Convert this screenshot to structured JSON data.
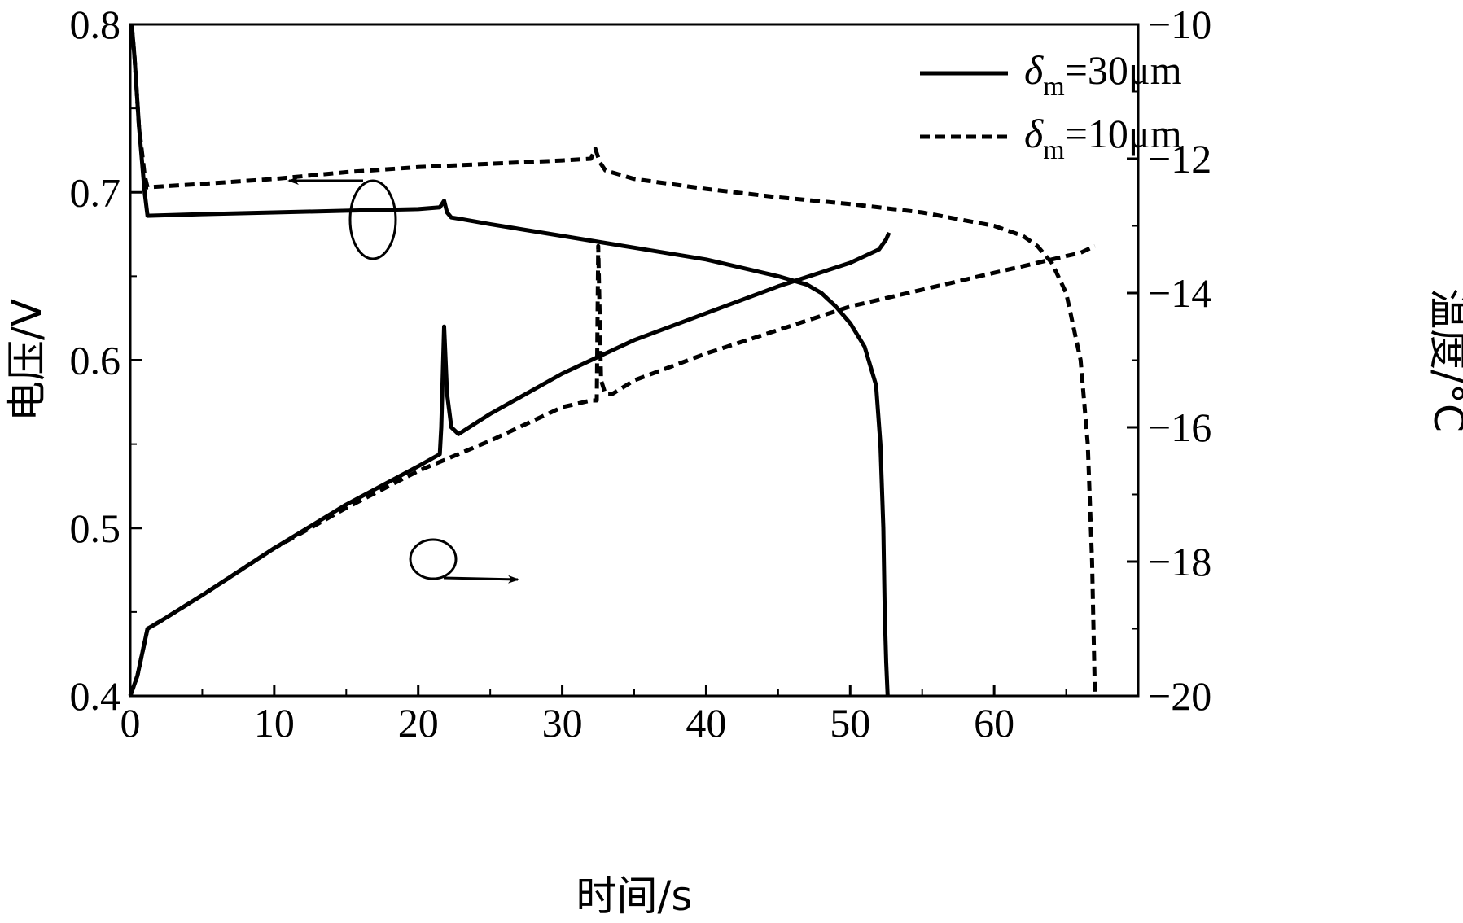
{
  "chart_data": {
    "type": "line",
    "title": "",
    "xlabel": "时间/s",
    "ylabel_left": "电压/V",
    "ylabel_right": "温度/°C",
    "xlim": [
      0,
      70
    ],
    "ylim_left": [
      0.4,
      0.8
    ],
    "ylim_right": [
      -20,
      -10
    ],
    "xticks": [
      "0",
      "10",
      "20",
      "30",
      "40",
      "50",
      "60"
    ],
    "yticks_left": [
      "0.4",
      "0.5",
      "0.6",
      "0.7",
      "0.8"
    ],
    "yticks_right": [
      "−20",
      "−18",
      "−16",
      "−14",
      "−12",
      "−10"
    ],
    "grid": false,
    "legend_position": "top-right",
    "legend": [
      {
        "symbol": "δ",
        "subscript": "m",
        "text": "=30μm",
        "style": "solid"
      },
      {
        "symbol": "δ",
        "subscript": "m",
        "text": "=10μm",
        "style": "dashed"
      }
    ],
    "series": [
      {
        "style": "solid",
        "axis": "left",
        "quantity": "voltage",
        "thickness_um": 30,
        "x": [
          0.1,
          0.3,
          0.6,
          1.0,
          1.2,
          5,
          10,
          15,
          20,
          21.5,
          21.8,
          22,
          22.3,
          23,
          25,
          30,
          35,
          40,
          45,
          47,
          48,
          49,
          50,
          51,
          51.8,
          52.1,
          52.3,
          52.4,
          52.5,
          52.6
        ],
        "y": [
          0.8,
          0.78,
          0.74,
          0.7,
          0.686,
          0.687,
          0.688,
          0.689,
          0.69,
          0.691,
          0.695,
          0.688,
          0.685,
          0.684,
          0.681,
          0.674,
          0.667,
          0.66,
          0.65,
          0.645,
          0.64,
          0.632,
          0.622,
          0.608,
          0.585,
          0.55,
          0.5,
          0.45,
          0.42,
          0.4
        ]
      },
      {
        "style": "dashed",
        "axis": "left",
        "quantity": "voltage",
        "thickness_um": 10,
        "x": [
          0.1,
          0.3,
          0.6,
          1.0,
          1.2,
          5,
          10,
          15,
          20,
          25,
          30,
          32,
          32.3,
          32.6,
          33,
          35,
          40,
          45,
          50,
          55,
          60,
          62,
          63,
          64,
          65,
          66,
          66.5,
          66.8,
          67
        ],
        "y": [
          0.8,
          0.78,
          0.74,
          0.71,
          0.703,
          0.705,
          0.708,
          0.712,
          0.715,
          0.717,
          0.719,
          0.72,
          0.726,
          0.718,
          0.713,
          0.708,
          0.702,
          0.697,
          0.693,
          0.688,
          0.68,
          0.674,
          0.668,
          0.658,
          0.64,
          0.6,
          0.55,
          0.48,
          0.4
        ]
      },
      {
        "style": "solid",
        "axis": "right",
        "quantity": "temperature",
        "thickness_um": 30,
        "x": [
          0,
          0.5,
          1.2,
          2,
          5,
          10,
          15,
          20,
          21.5,
          21.6,
          21.8,
          22,
          22.3,
          22.8,
          25,
          30,
          35,
          40,
          45,
          50,
          52,
          52.5,
          52.7
        ],
        "y": [
          -20,
          -19.7,
          -19.0,
          -18.9,
          -18.5,
          -17.8,
          -17.15,
          -16.58,
          -16.4,
          -16.0,
          -14.5,
          -15.5,
          -16.0,
          -16.1,
          -15.8,
          -15.2,
          -14.7,
          -14.3,
          -13.9,
          -13.55,
          -13.35,
          -13.2,
          -13.1
        ]
      },
      {
        "style": "dashed",
        "axis": "right",
        "quantity": "temperature",
        "thickness_um": 10,
        "x": [
          0,
          0.5,
          1.2,
          2,
          5,
          10,
          15,
          20,
          25,
          30,
          32,
          32.4,
          32.5,
          32.7,
          33,
          33.5,
          35,
          40,
          45,
          50,
          55,
          60,
          65,
          66,
          67
        ],
        "y": [
          -20,
          -19.7,
          -19.0,
          -18.9,
          -18.5,
          -17.8,
          -17.2,
          -16.65,
          -16.2,
          -15.7,
          -15.6,
          -15.6,
          -13.3,
          -15.3,
          -15.5,
          -15.5,
          -15.3,
          -14.9,
          -14.55,
          -14.2,
          -13.95,
          -13.7,
          -13.45,
          -13.4,
          -13.3
        ]
      }
    ],
    "annotations": [
      {
        "text": "",
        "kind": "ellipse-with-arrow",
        "points_to": "left axis",
        "marks": "voltage curves"
      },
      {
        "text": "",
        "kind": "ellipse-with-arrow",
        "points_to": "right axis",
        "marks": "temperature curves"
      }
    ]
  }
}
